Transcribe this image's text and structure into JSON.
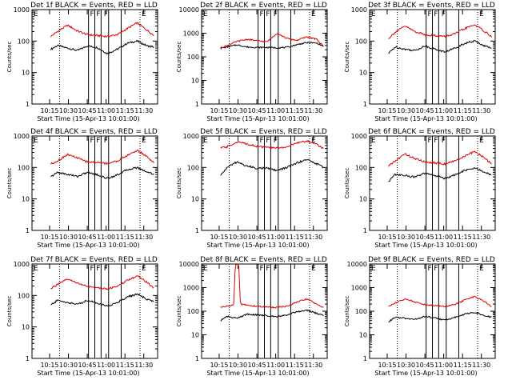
{
  "figure": {
    "xlabel": "Start Time (15-Apr-13 10:01:00)",
    "ylabel": "Counts/sec",
    "x_tick_labels": [
      "10:15",
      "10:30",
      "10:45",
      "11:00",
      "11:15",
      "11:30"
    ],
    "flag_letters": [
      "F",
      "E"
    ]
  },
  "colors": {
    "events": "#000000",
    "lld": "#e00000",
    "axes": "#000000"
  },
  "chart_data": [
    {
      "type": "line",
      "title": "Det 1f BLACK = Events, RED = LLD",
      "y_ticks": [
        "1",
        "10",
        "100",
        "1000"
      ],
      "ylim": [
        1,
        1000
      ],
      "xlim_minutes": [
        8,
        41
      ],
      "series": [
        {
          "name": "Events",
          "color": "#000000",
          "x": [
            9,
            11,
            14,
            17,
            20,
            23,
            26,
            29,
            32,
            35,
            38,
            40
          ],
          "y": [
            55,
            72,
            60,
            50,
            70,
            62,
            40,
            55,
            85,
            100,
            70,
            65
          ]
        },
        {
          "name": "LLD",
          "color": "#e00000",
          "x": [
            9,
            11,
            14,
            17,
            20,
            23,
            26,
            29,
            32,
            35,
            38,
            40
          ],
          "y": [
            140,
            200,
            320,
            210,
            160,
            150,
            140,
            160,
            250,
            380,
            220,
            150
          ]
        }
      ]
    },
    {
      "type": "line",
      "title": "Det 2f BLACK = Events, RED = LLD",
      "y_ticks": [
        "1",
        "10",
        "100",
        "1000",
        "10000"
      ],
      "ylim": [
        1,
        10000
      ],
      "xlim_minutes": [
        8,
        41
      ],
      "series": [
        {
          "name": "Events",
          "color": "#000000",
          "x": [
            9,
            11,
            14,
            17,
            20,
            23,
            26,
            29,
            32,
            35,
            38,
            40
          ],
          "y": [
            230,
            260,
            320,
            260,
            250,
            250,
            240,
            250,
            330,
            400,
            380,
            280
          ]
        },
        {
          "name": "LLD",
          "color": "#e00000",
          "x": [
            9,
            11,
            14,
            17,
            20,
            23,
            26,
            29,
            32,
            35,
            38,
            40
          ],
          "y": [
            240,
            300,
            450,
            550,
            480,
            430,
            1000,
            600,
            500,
            700,
            550,
            280
          ]
        }
      ]
    },
    {
      "type": "line",
      "title": "Det 3f BLACK = Events, RED = LLD",
      "y_ticks": [
        "1",
        "10",
        "100",
        "1000"
      ],
      "ylim": [
        1,
        1000
      ],
      "xlim_minutes": [
        8,
        41
      ],
      "series": [
        {
          "name": "Events",
          "color": "#000000",
          "x": [
            9,
            11,
            14,
            17,
            20,
            23,
            26,
            29,
            32,
            35,
            38,
            40
          ],
          "y": [
            40,
            65,
            55,
            50,
            70,
            55,
            45,
            60,
            85,
            100,
            70,
            60
          ]
        },
        {
          "name": "LLD",
          "color": "#e00000",
          "x": [
            9,
            11,
            14,
            17,
            20,
            23,
            26,
            29,
            32,
            35,
            38,
            40
          ],
          "y": [
            120,
            190,
            300,
            200,
            160,
            150,
            140,
            170,
            250,
            330,
            200,
            140
          ]
        }
      ]
    },
    {
      "type": "line",
      "title": "Det 4f BLACK = Events, RED = LLD",
      "y_ticks": [
        "1",
        "10",
        "100",
        "1000"
      ],
      "ylim": [
        1,
        1000
      ],
      "xlim_minutes": [
        8,
        41
      ],
      "series": [
        {
          "name": "Events",
          "color": "#000000",
          "x": [
            9,
            11,
            14,
            17,
            20,
            23,
            26,
            29,
            32,
            35,
            38,
            40
          ],
          "y": [
            50,
            70,
            60,
            52,
            70,
            58,
            45,
            58,
            85,
            100,
            72,
            62
          ]
        },
        {
          "name": "LLD",
          "color": "#e00000",
          "x": [
            9,
            11,
            14,
            17,
            20,
            23,
            26,
            29,
            32,
            35,
            38,
            40
          ],
          "y": [
            130,
            160,
            260,
            200,
            150,
            145,
            135,
            160,
            240,
            350,
            220,
            140
          ]
        }
      ]
    },
    {
      "type": "line",
      "title": "Det 5f BLACK = Events, RED = LLD",
      "y_ticks": [
        "1",
        "10",
        "100",
        "1000"
      ],
      "ylim": [
        1,
        1000
      ],
      "xlim_minutes": [
        8,
        41
      ],
      "series": [
        {
          "name": "Events",
          "color": "#000000",
          "x": [
            9,
            11,
            14,
            17,
            20,
            23,
            26,
            29,
            32,
            35,
            38,
            40
          ],
          "y": [
            55,
            100,
            150,
            110,
            95,
            95,
            80,
            100,
            140,
            180,
            130,
            100
          ]
        },
        {
          "name": "LLD",
          "color": "#e00000",
          "x": [
            9,
            11,
            14,
            17,
            20,
            23,
            26,
            29,
            32,
            35,
            38,
            40
          ],
          "y": [
            420,
            450,
            650,
            560,
            470,
            430,
            420,
            450,
            600,
            700,
            550,
            400
          ]
        }
      ]
    },
    {
      "type": "line",
      "title": "Det 6f BLACK = Events, RED = LLD",
      "y_ticks": [
        "1",
        "10",
        "100",
        "1000"
      ],
      "ylim": [
        1,
        1000
      ],
      "xlim_minutes": [
        8,
        41
      ],
      "series": [
        {
          "name": "Events",
          "color": "#000000",
          "x": [
            9,
            11,
            14,
            17,
            20,
            23,
            26,
            29,
            32,
            35,
            38,
            40
          ],
          "y": [
            35,
            60,
            55,
            50,
            65,
            55,
            45,
            58,
            80,
            95,
            70,
            58
          ]
        },
        {
          "name": "LLD",
          "color": "#e00000",
          "x": [
            9,
            11,
            14,
            17,
            20,
            23,
            26,
            29,
            32,
            35,
            38,
            40
          ],
          "y": [
            110,
            160,
            270,
            190,
            150,
            140,
            130,
            160,
            230,
            320,
            200,
            130
          ]
        }
      ]
    },
    {
      "type": "line",
      "title": "Det 7f BLACK = Events, RED = LLD",
      "y_ticks": [
        "1",
        "10",
        "100",
        "1000"
      ],
      "ylim": [
        1,
        1000
      ],
      "xlim_minutes": [
        8,
        41
      ],
      "series": [
        {
          "name": "Events",
          "color": "#000000",
          "x": [
            9,
            11,
            14,
            17,
            20,
            23,
            26,
            29,
            32,
            35,
            38,
            40
          ],
          "y": [
            50,
            70,
            60,
            52,
            70,
            58,
            45,
            60,
            90,
            110,
            75,
            65
          ]
        },
        {
          "name": "LLD",
          "color": "#e00000",
          "x": [
            9,
            11,
            14,
            17,
            20,
            23,
            26,
            29,
            32,
            35,
            38,
            40
          ],
          "y": [
            170,
            220,
            330,
            250,
            190,
            175,
            165,
            190,
            300,
            420,
            260,
            170
          ]
        }
      ]
    },
    {
      "type": "line",
      "title": "Det 8f BLACK = Events, RED = LLD",
      "y_ticks": [
        "1",
        "10",
        "100",
        "1000",
        "10000"
      ],
      "ylim": [
        1,
        10000
      ],
      "xlim_minutes": [
        8,
        41
      ],
      "series": [
        {
          "name": "Events",
          "color": "#000000",
          "x": [
            9,
            11,
            14,
            17,
            20,
            23,
            26,
            29,
            32,
            35,
            38,
            40
          ],
          "y": [
            40,
            60,
            50,
            75,
            70,
            65,
            60,
            70,
            95,
            110,
            80,
            65
          ]
        },
        {
          "name": "LLD",
          "color": "#e00000",
          "x": [
            9,
            11,
            13,
            13.5,
            14.5,
            15,
            17,
            20,
            23,
            26,
            29,
            32,
            35,
            38,
            40
          ],
          "y": [
            150,
            160,
            190,
            10000,
            10000,
            200,
            180,
            160,
            150,
            145,
            160,
            240,
            330,
            200,
            140
          ]
        }
      ]
    },
    {
      "type": "line",
      "title": "Det 9f BLACK = Events, RED = LLD",
      "y_ticks": [
        "1",
        "10",
        "100",
        "1000",
        "10000"
      ],
      "ylim": [
        1,
        10000
      ],
      "xlim_minutes": [
        8,
        41
      ],
      "series": [
        {
          "name": "Events",
          "color": "#000000",
          "x": [
            9,
            11,
            14,
            17,
            20,
            23,
            26,
            29,
            32,
            35,
            38,
            40
          ],
          "y": [
            35,
            55,
            50,
            45,
            60,
            52,
            42,
            55,
            75,
            90,
            65,
            55
          ]
        },
        {
          "name": "LLD",
          "color": "#e00000",
          "x": [
            9,
            11,
            14,
            17,
            20,
            23,
            26,
            29,
            32,
            35,
            38,
            40
          ],
          "y": [
            160,
            220,
            330,
            250,
            190,
            175,
            160,
            190,
            300,
            420,
            250,
            160
          ]
        }
      ]
    }
  ]
}
